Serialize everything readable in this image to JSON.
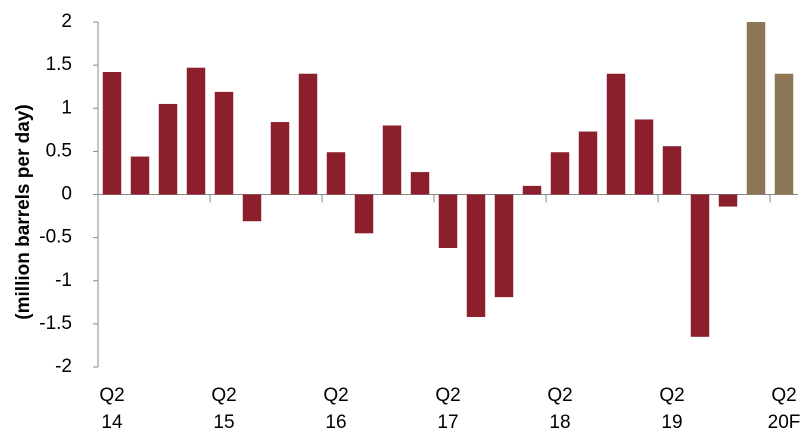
{
  "chart_data": {
    "type": "bar",
    "ylabel": "(million barrels per day)",
    "categories": [
      [
        "Q2",
        "14"
      ],
      null,
      null,
      null,
      [
        "Q2",
        "15"
      ],
      null,
      null,
      null,
      [
        "Q2",
        "16"
      ],
      null,
      null,
      null,
      [
        "Q2",
        "17"
      ],
      null,
      null,
      null,
      [
        "Q2",
        "18"
      ],
      null,
      null,
      null,
      [
        "Q2",
        "19"
      ],
      null,
      null,
      null,
      [
        "Q2",
        "20F"
      ]
    ],
    "values": [
      1.42,
      0.44,
      1.05,
      1.47,
      1.19,
      -0.31,
      0.84,
      1.4,
      0.49,
      -0.45,
      0.8,
      0.26,
      -0.62,
      -1.42,
      -1.19,
      0.1,
      0.49,
      0.73,
      1.4,
      0.87,
      0.56,
      -1.65,
      -0.14,
      2.0,
      1.4
    ],
    "colors": [
      "#8b1f2c",
      "#8b1f2c",
      "#8b1f2c",
      "#8b1f2c",
      "#8b1f2c",
      "#8b1f2c",
      "#8b1f2c",
      "#8b1f2c",
      "#8b1f2c",
      "#8b1f2c",
      "#8b1f2c",
      "#8b1f2c",
      "#8b1f2c",
      "#8b1f2c",
      "#8b1f2c",
      "#8b1f2c",
      "#8b1f2c",
      "#8b1f2c",
      "#8b1f2c",
      "#8b1f2c",
      "#8b1f2c",
      "#8b1f2c",
      "#8b1f2c",
      "#8c7655",
      "#8c7655"
    ],
    "ylim": [
      -2,
      2
    ],
    "yticks": [
      2,
      1.5,
      1,
      0.5,
      0,
      -0.5,
      -1,
      -1.5,
      -2
    ],
    "grid": false
  }
}
